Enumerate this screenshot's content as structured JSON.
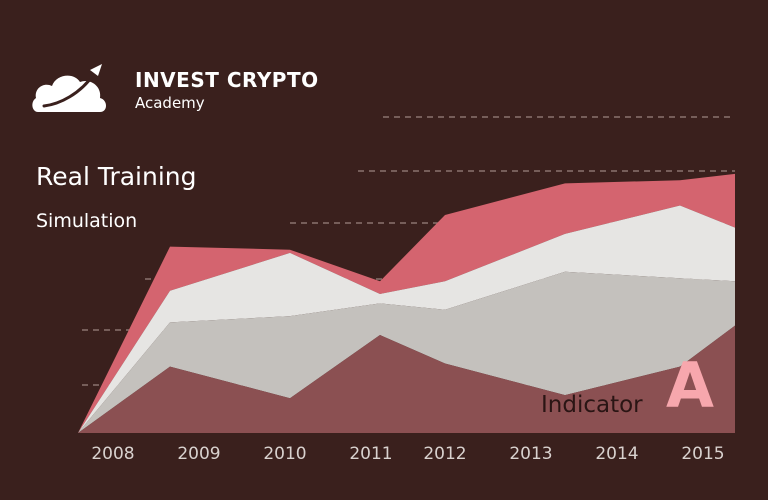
{
  "brand": {
    "name": "INVEST CRYPTO",
    "subtitle": "Academy",
    "logo_icon": "cloud-rocket-icon"
  },
  "headline": "Real Training",
  "subheadline": "Simulation",
  "indicator": {
    "label": "Indicator",
    "letter": "A"
  },
  "colors": {
    "background": "#3a201d",
    "gridline": "#9a8480",
    "axis_tick": "#d9d2cf",
    "indicator_letter": "#f7a7ad"
  },
  "chart_data": {
    "type": "area",
    "stacked": true,
    "grid": "horizontal dashed lines (right side)",
    "x": [
      "2008",
      "2009",
      "2010",
      "2011",
      "2012",
      "2013",
      "2014",
      "2015"
    ],
    "ylim": [
      0,
      100
    ],
    "series": [
      {
        "color": "#8b5052",
        "values": [
          0,
          21,
          11,
          31,
          22,
          12,
          21,
          34
        ]
      },
      {
        "color": "#c4c1bd",
        "values": [
          0,
          14,
          26,
          10,
          17,
          39,
          28,
          14
        ]
      },
      {
        "color": "#e6e5e3",
        "values": [
          0,
          10,
          20,
          3,
          9,
          12,
          23,
          17
        ]
      },
      {
        "color": "#d4646f",
        "values": [
          0,
          14,
          1,
          4,
          21,
          16,
          8,
          17
        ]
      }
    ]
  }
}
